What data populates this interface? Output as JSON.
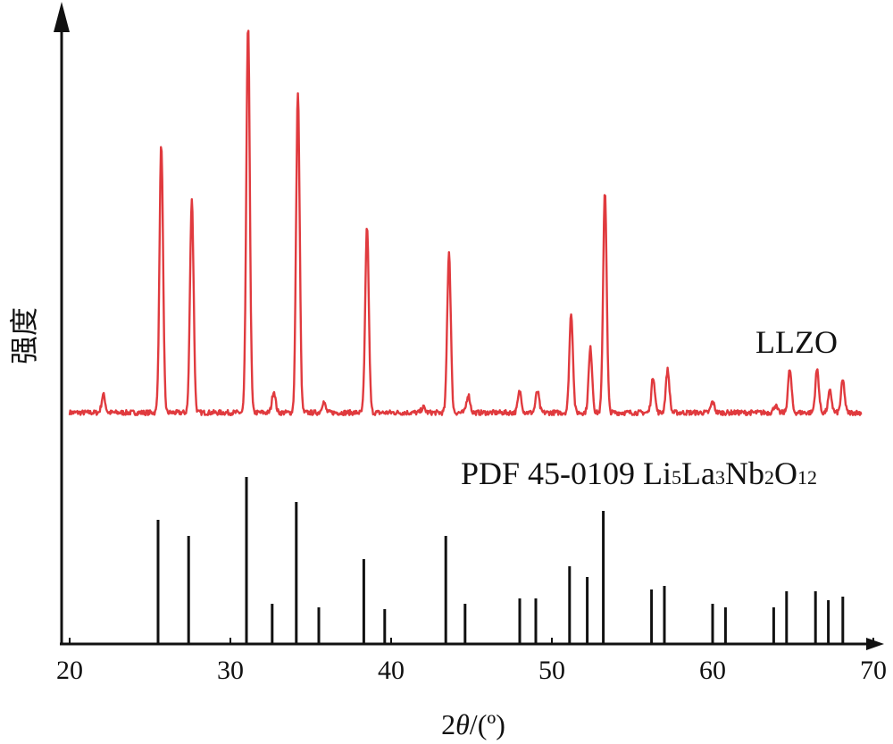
{
  "chart_data": {
    "type": "line",
    "title": "",
    "xlabel_prefix": "2",
    "xlabel_theta": "θ",
    "xlabel_suffix": "/(º)",
    "ylabel": "强度",
    "xlim": [
      20,
      70
    ],
    "x_ticks": [
      "20",
      "30",
      "40",
      "50",
      "60",
      "70"
    ],
    "grid": false,
    "series": [
      {
        "name": "LLZO",
        "color": "#e03a3e",
        "type": "xrd-pattern",
        "peaks": [
          {
            "x": 22.1,
            "i": 5
          },
          {
            "x": 25.7,
            "i": 75
          },
          {
            "x": 27.6,
            "i": 60
          },
          {
            "x": 31.1,
            "i": 108
          },
          {
            "x": 32.7,
            "i": 6
          },
          {
            "x": 34.2,
            "i": 90
          },
          {
            "x": 35.8,
            "i": 3
          },
          {
            "x": 38.5,
            "i": 52
          },
          {
            "x": 42.0,
            "i": 1.5
          },
          {
            "x": 43.6,
            "i": 45
          },
          {
            "x": 44.8,
            "i": 5
          },
          {
            "x": 48.0,
            "i": 6
          },
          {
            "x": 49.1,
            "i": 6
          },
          {
            "x": 51.2,
            "i": 28
          },
          {
            "x": 52.4,
            "i": 18
          },
          {
            "x": 53.3,
            "i": 62
          },
          {
            "x": 56.3,
            "i": 10
          },
          {
            "x": 57.2,
            "i": 12
          },
          {
            "x": 60.0,
            "i": 3
          },
          {
            "x": 63.9,
            "i": 2
          },
          {
            "x": 64.8,
            "i": 12
          },
          {
            "x": 66.5,
            "i": 12
          },
          {
            "x": 67.3,
            "i": 6
          },
          {
            "x": 68.1,
            "i": 9
          }
        ]
      },
      {
        "name_parts": [
          "PDF 45-0109 Li",
          "5",
          "La",
          "3",
          "Nb",
          "2",
          "O",
          "12"
        ],
        "color": "#111111",
        "type": "stick-pattern",
        "sticks": [
          {
            "x": 25.5,
            "i": 69
          },
          {
            "x": 27.4,
            "i": 60
          },
          {
            "x": 31.0,
            "i": 93
          },
          {
            "x": 32.6,
            "i": 22
          },
          {
            "x": 34.1,
            "i": 79
          },
          {
            "x": 35.5,
            "i": 20
          },
          {
            "x": 38.3,
            "i": 47
          },
          {
            "x": 39.6,
            "i": 19
          },
          {
            "x": 43.4,
            "i": 60
          },
          {
            "x": 44.6,
            "i": 22
          },
          {
            "x": 48.0,
            "i": 25
          },
          {
            "x": 49.0,
            "i": 25
          },
          {
            "x": 51.1,
            "i": 43
          },
          {
            "x": 52.2,
            "i": 37
          },
          {
            "x": 53.2,
            "i": 74
          },
          {
            "x": 56.2,
            "i": 30
          },
          {
            "x": 57.0,
            "i": 32
          },
          {
            "x": 60.0,
            "i": 22
          },
          {
            "x": 60.8,
            "i": 20
          },
          {
            "x": 63.8,
            "i": 20
          },
          {
            "x": 64.6,
            "i": 29
          },
          {
            "x": 66.4,
            "i": 29
          },
          {
            "x": 67.2,
            "i": 24
          },
          {
            "x": 68.1,
            "i": 26
          }
        ]
      }
    ]
  }
}
